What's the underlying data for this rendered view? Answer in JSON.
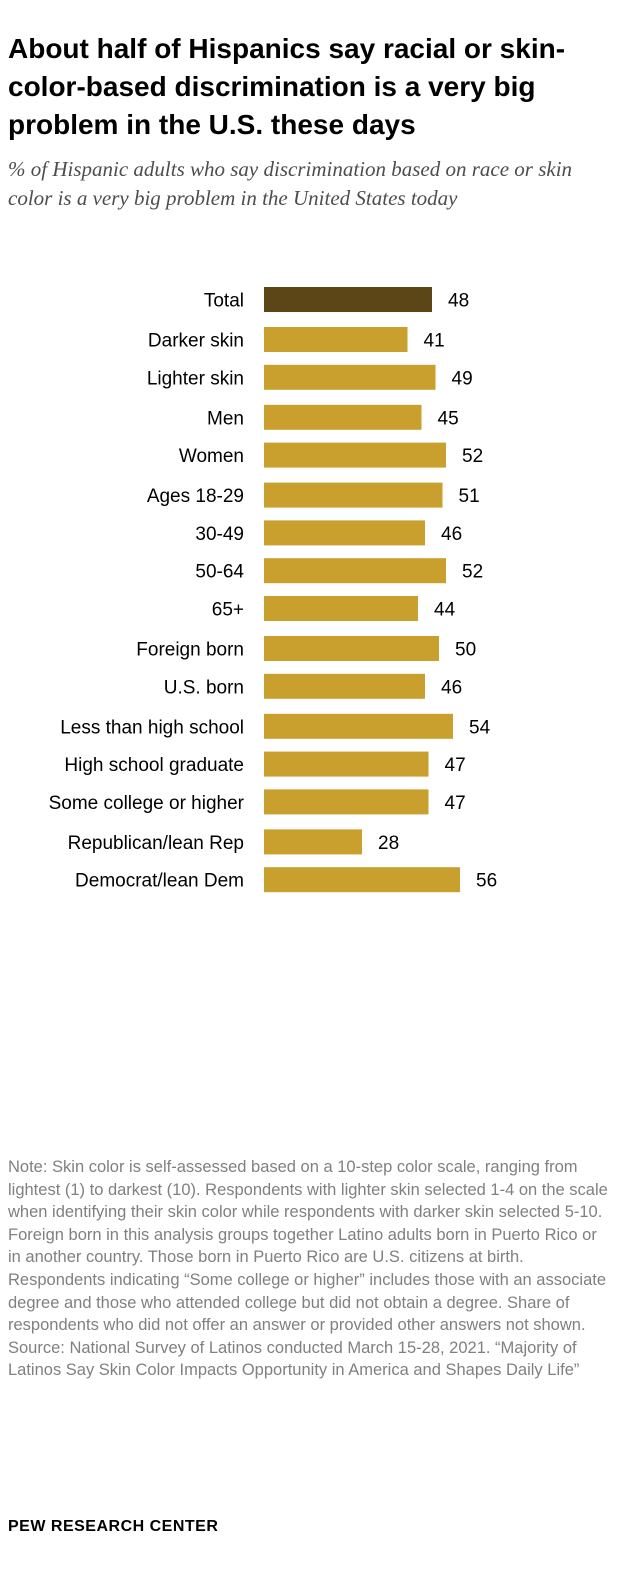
{
  "title": "About half of Hispanics say racial or skin-color-based discrimination is a very big problem in the U.S. these days",
  "subtitle": "% of Hispanic adults who say discrimination based on race or skin color is a very big problem in the United States today",
  "chart_data": {
    "type": "bar",
    "orientation": "horizontal",
    "title": "About half of Hispanics say racial or skin-color-based discrimination is a very big problem in the U.S. these days",
    "xlabel": "",
    "ylabel": "",
    "xlim": [
      0,
      100
    ],
    "grid": false,
    "colors": {
      "total": "#5c4516",
      "default": "#c9a02d"
    },
    "categories": [
      "Total",
      "Darker skin",
      "Lighter skin",
      "Men",
      "Women",
      "Ages 18-29",
      "30-49",
      "50-64",
      "65+",
      "Foreign born",
      "U.S. born",
      "Less than high school",
      "High school graduate",
      "Some college or higher",
      "Republican/lean Rep",
      "Democrat/lean Dem"
    ],
    "values": [
      48,
      41,
      49,
      45,
      52,
      51,
      46,
      52,
      44,
      50,
      46,
      54,
      47,
      47,
      28,
      56
    ],
    "groups": [
      [
        "Total"
      ],
      [
        "Darker skin",
        "Lighter skin"
      ],
      [
        "Men",
        "Women"
      ],
      [
        "Ages 18-29",
        "30-49",
        "50-64",
        "65+"
      ],
      [
        "Foreign born",
        "U.S. born"
      ],
      [
        "Less than high school",
        "High school graduate",
        "Some college or higher"
      ],
      [
        "Republican/lean Rep",
        "Democrat/lean Dem"
      ]
    ]
  },
  "note": "Note: Skin color is self-assessed based on a 10-step color scale, ranging from lightest (1) to darkest (10). Respondents with lighter skin selected 1-4 on the scale when identifying their skin color while respondents with darker skin selected 5-10. Foreign born in this analysis groups together Latino adults born in Puerto Rico or in another country. Those born in Puerto Rico are U.S. citizens at birth. Respondents indicating “Some college or higher” includes those with an associate degree and those who attended college but did not obtain a degree. Share of respondents who did not offer an answer or provided other answers not shown.",
  "source": "Source: National Survey of Latinos conducted March 15-28, 2021. “Majority of Latinos Say Skin Color Impacts Opportunity in America and Shapes Daily Life”",
  "footer": "PEW RESEARCH CENTER"
}
